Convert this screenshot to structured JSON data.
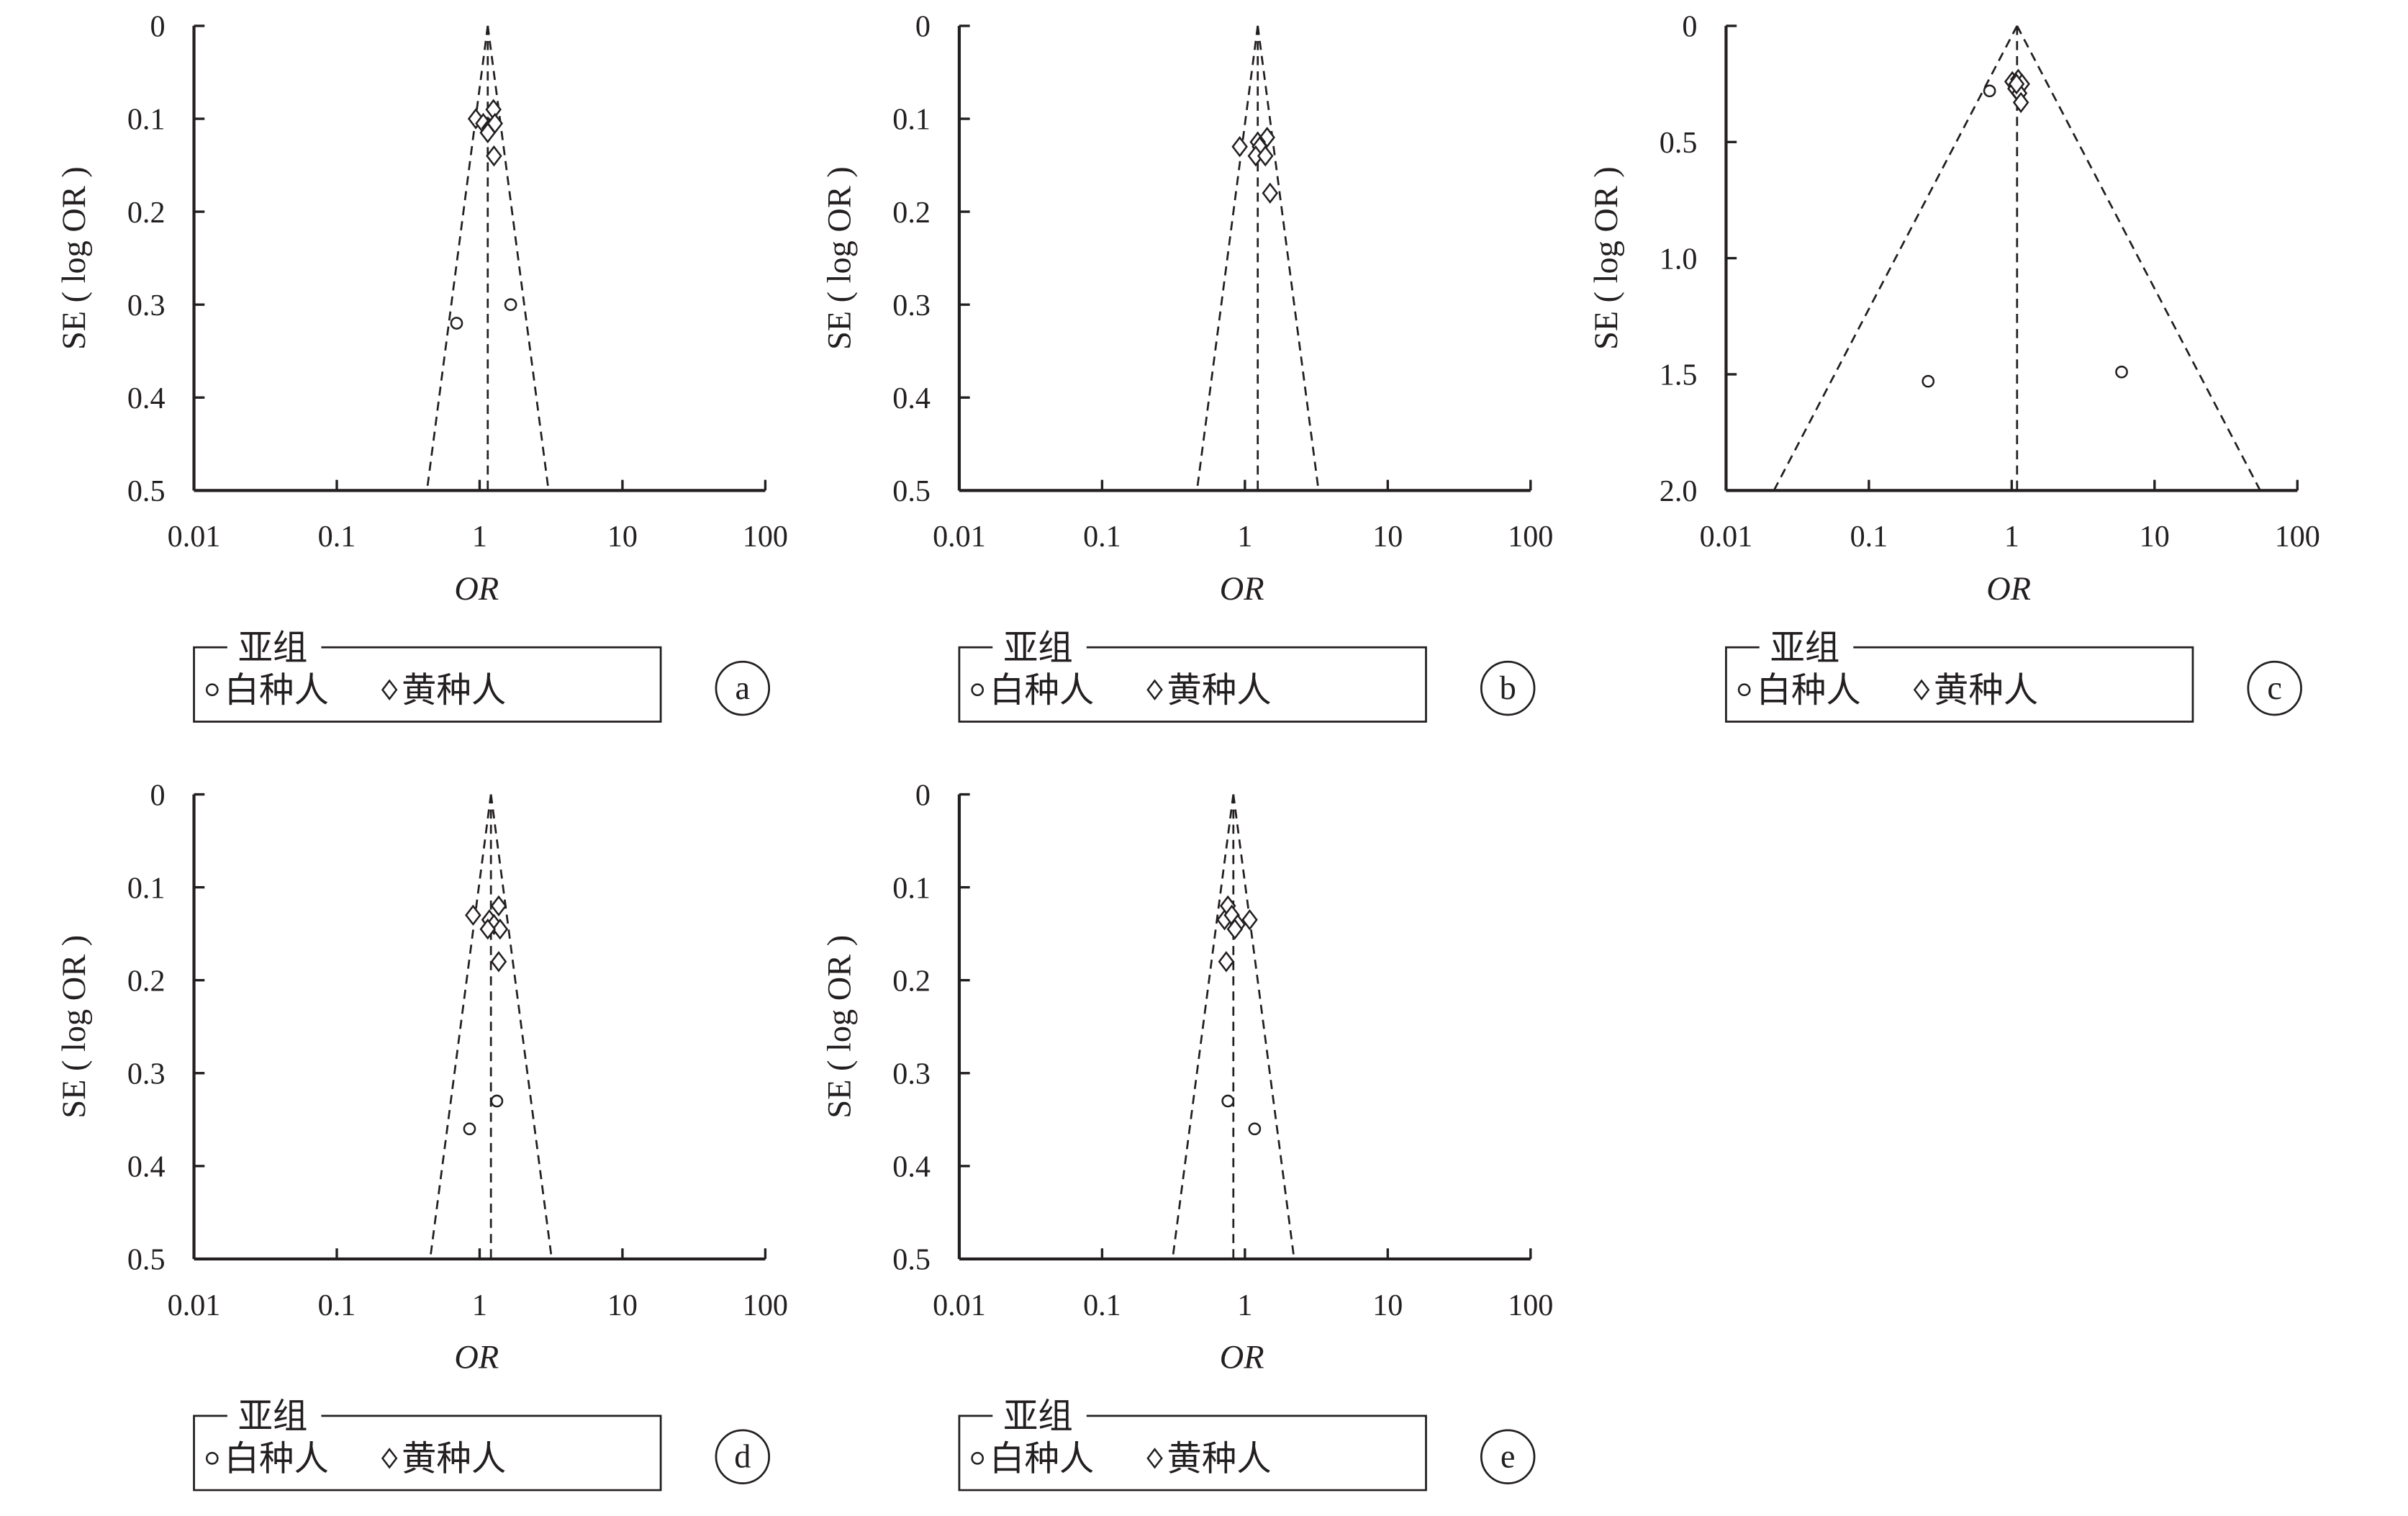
{
  "colors": {
    "ink": "#231f20",
    "background": "#ffffff"
  },
  "chart_data": [
    {
      "type": "scatter",
      "panel_label": "a",
      "xlabel": "OR",
      "ylabel": "SE ( log OR )",
      "x_scale": "log",
      "xlim": [
        0.01,
        100
      ],
      "x_ticks": [
        "0.01",
        "0.1",
        "1",
        "10",
        "100"
      ],
      "ylim": [
        0,
        0.5
      ],
      "y_reversed": true,
      "y_ticks": [
        "0",
        "0.1",
        "0.2",
        "0.3",
        "0.4",
        "0.5"
      ],
      "grid": false,
      "pooled_or": 1.14,
      "legend": {
        "title": "亚组",
        "placement": "bottom"
      },
      "series": [
        {
          "name": "白种人",
          "marker": "circle",
          "points": [
            [
              0.69,
              0.32
            ],
            [
              1.65,
              0.3
            ]
          ]
        },
        {
          "name": "黄种人",
          "marker": "diamond",
          "points": [
            [
              1.25,
              0.09
            ],
            [
              0.94,
              0.1
            ],
            [
              1.06,
              0.105
            ],
            [
              1.17,
              0.11
            ],
            [
              1.28,
              0.105
            ],
            [
              1.14,
              0.115
            ],
            [
              1.26,
              0.14
            ]
          ]
        }
      ]
    },
    {
      "type": "scatter",
      "panel_label": "b",
      "xlabel": "OR",
      "ylabel": "SE ( log OR )",
      "x_scale": "log",
      "xlim": [
        0.01,
        100
      ],
      "x_ticks": [
        "0.01",
        "0.1",
        "1",
        "10",
        "100"
      ],
      "ylim": [
        0,
        0.5
      ],
      "y_reversed": true,
      "y_ticks": [
        "0",
        "0.1",
        "0.2",
        "0.3",
        "0.4",
        "0.5"
      ],
      "grid": false,
      "pooled_or": 1.23,
      "legend": {
        "title": "亚组",
        "placement": "bottom"
      },
      "series": [
        {
          "name": "白种人",
          "marker": "circle",
          "points": []
        },
        {
          "name": "黄种人",
          "marker": "diamond",
          "points": [
            [
              0.92,
              0.13
            ],
            [
              1.43,
              0.12
            ],
            [
              1.23,
              0.125
            ],
            [
              1.27,
              0.13
            ],
            [
              1.19,
              0.14
            ],
            [
              1.39,
              0.14
            ],
            [
              1.5,
              0.18
            ]
          ]
        }
      ]
    },
    {
      "type": "scatter",
      "panel_label": "c",
      "xlabel": "OR",
      "ylabel": "SE ( log OR )",
      "x_scale": "log",
      "xlim": [
        0.01,
        100
      ],
      "x_ticks": [
        "0.01",
        "0.1",
        "1",
        "10",
        "100"
      ],
      "ylim": [
        0,
        2.0
      ],
      "y_reversed": true,
      "y_ticks": [
        "0",
        "0.5",
        "1.0",
        "1.5",
        "2.0"
      ],
      "grid": false,
      "pooled_or": 1.09,
      "legend": {
        "title": "亚组",
        "placement": "bottom"
      },
      "series": [
        {
          "name": "白种人",
          "marker": "circle",
          "points": [
            [
              0.7,
              0.28
            ],
            [
              0.26,
              1.53
            ],
            [
              5.88,
              1.49
            ]
          ]
        },
        {
          "name": "黄种人",
          "marker": "diamond",
          "points": [
            [
              1.01,
              0.24
            ],
            [
              1.11,
              0.23
            ],
            [
              1.18,
              0.25
            ],
            [
              1.06,
              0.27
            ],
            [
              1.13,
              0.29
            ],
            [
              1.16,
              0.33
            ],
            [
              1.08,
              0.25
            ]
          ]
        }
      ]
    },
    {
      "type": "scatter",
      "panel_label": "d",
      "xlabel": "OR",
      "ylabel": "SE ( log OR )",
      "x_scale": "log",
      "xlim": [
        0.01,
        100
      ],
      "x_ticks": [
        "0.01",
        "0.1",
        "1",
        "10",
        "100"
      ],
      "ylim": [
        0,
        0.5
      ],
      "y_reversed": true,
      "y_ticks": [
        "0",
        "0.1",
        "0.2",
        "0.3",
        "0.4",
        "0.5"
      ],
      "grid": false,
      "pooled_or": 1.2,
      "legend": {
        "title": "亚组",
        "placement": "bottom"
      },
      "series": [
        {
          "name": "白种人",
          "marker": "circle",
          "points": [
            [
              0.85,
              0.36
            ],
            [
              1.32,
              0.33
            ]
          ]
        },
        {
          "name": "黄种人",
          "marker": "diamond",
          "points": [
            [
              0.9,
              0.13
            ],
            [
              1.36,
              0.12
            ],
            [
              1.17,
              0.135
            ],
            [
              1.26,
              0.14
            ],
            [
              1.39,
              0.145
            ],
            [
              1.14,
              0.145
            ],
            [
              1.36,
              0.18
            ]
          ]
        }
      ]
    },
    {
      "type": "scatter",
      "panel_label": "e",
      "xlabel": "OR",
      "ylabel": "SE ( log OR )",
      "x_scale": "log",
      "xlim": [
        0.01,
        100
      ],
      "x_ticks": [
        "0.01",
        "0.1",
        "1",
        "10",
        "100"
      ],
      "ylim": [
        0,
        0.5
      ],
      "y_reversed": true,
      "y_ticks": [
        "0",
        "0.1",
        "0.2",
        "0.3",
        "0.4",
        "0.5"
      ],
      "grid": false,
      "pooled_or": 0.83,
      "legend": {
        "title": "亚组",
        "placement": "bottom"
      },
      "series": [
        {
          "name": "白种人",
          "marker": "circle",
          "points": [
            [
              0.76,
              0.33
            ],
            [
              1.17,
              0.36
            ]
          ]
        },
        {
          "name": "黄种人",
          "marker": "diamond",
          "points": [
            [
              0.76,
              0.12
            ],
            [
              0.72,
              0.135
            ],
            [
              0.81,
              0.13
            ],
            [
              0.89,
              0.14
            ],
            [
              1.08,
              0.135
            ],
            [
              0.85,
              0.145
            ],
            [
              0.74,
              0.18
            ]
          ]
        }
      ]
    }
  ]
}
